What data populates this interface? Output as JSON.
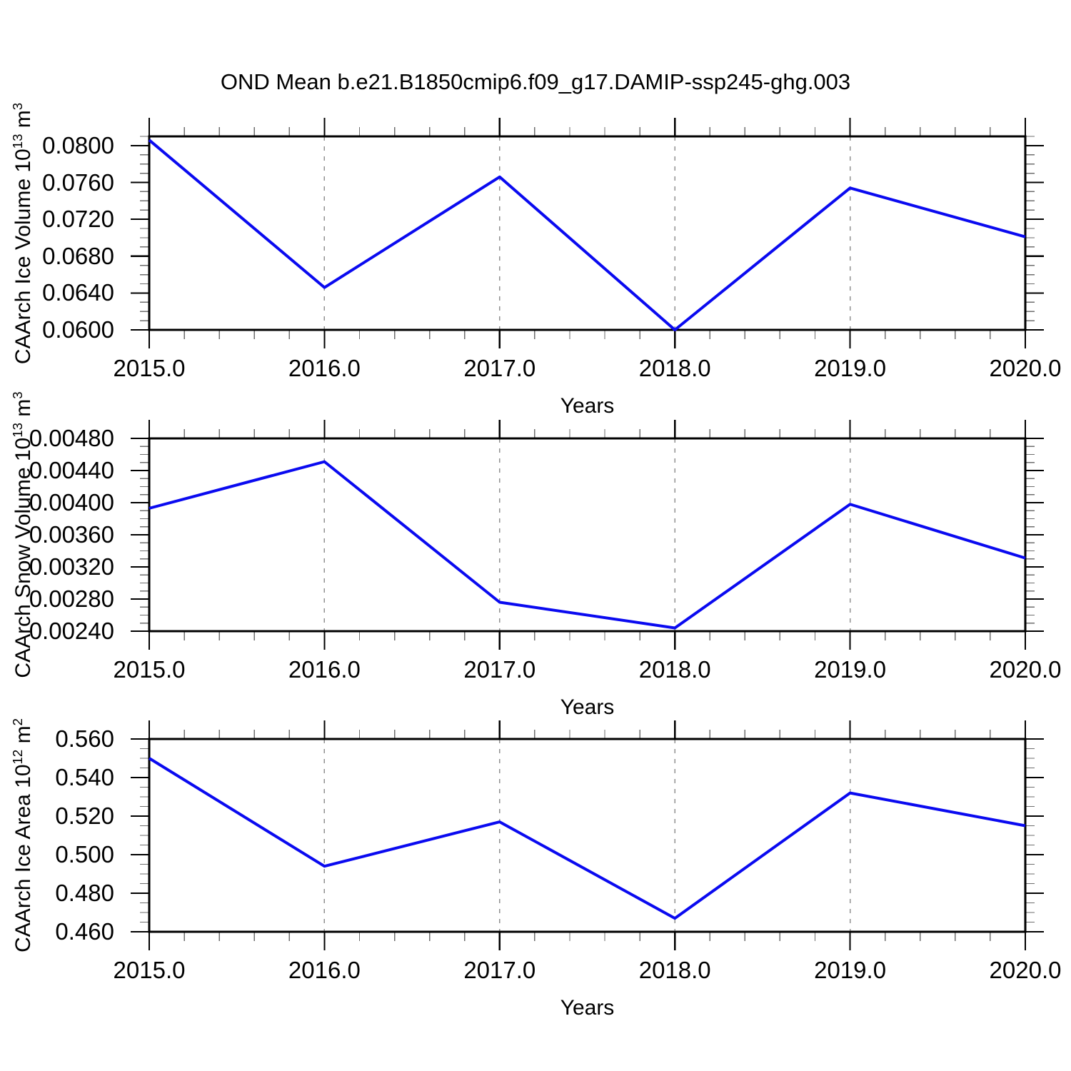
{
  "title": "OND Mean b.e21.B1850cmip6.f09_g17.DAMIP-ssp245-ghg.003",
  "colors": {
    "line": "#0a0af0",
    "frame": "#000000",
    "major_tick": "#000000",
    "minor_tick": "#6e6e6e",
    "grid": "#909090",
    "text": "#000000"
  },
  "x_axis": {
    "title": "Years",
    "range": [
      2015.0,
      2020.0
    ],
    "tick_values": [
      2015.0,
      2016.0,
      2017.0,
      2018.0,
      2019.0,
      2020.0
    ],
    "tick_labels": [
      "2015.0",
      "2016.0",
      "2017.0",
      "2018.0",
      "2019.0",
      "2020.0"
    ],
    "minor_step": 0.2,
    "gridlines_at": [
      2016.0,
      2017.0,
      2018.0,
      2019.0
    ],
    "grid_style": "dashed"
  },
  "chart_data": [
    {
      "type": "line",
      "name": "caarch-ice-volume",
      "ylabel": "CAArch Ice Volume 10^13 m^3",
      "ylabel_parts": [
        {
          "t": "CAArch Ice Volume 10"
        },
        {
          "t": "13",
          "sup": true
        },
        {
          "t": " m"
        },
        {
          "t": "3",
          "sup": true
        }
      ],
      "x": [
        2015.0,
        2016.0,
        2017.0,
        2018.0,
        2019.0,
        2020.0
      ],
      "values": [
        0.0806,
        0.0646,
        0.0766,
        0.06,
        0.0754,
        0.0701
      ],
      "ylim": [
        0.06,
        0.081
      ],
      "ytick_values": [
        0.06,
        0.064,
        0.068,
        0.072,
        0.076,
        0.08
      ],
      "ytick_labels": [
        "0.0600",
        "0.0640",
        "0.0680",
        "0.0720",
        "0.0760",
        "0.0800"
      ],
      "yminor_step": 0.001
    },
    {
      "type": "line",
      "name": "caarch-snow-volume",
      "ylabel": "CAArch Snow Volume 10^13 m^3",
      "ylabel_parts": [
        {
          "t": "CAArch Snow Volume 10"
        },
        {
          "t": "13",
          "sup": true
        },
        {
          "t": " m"
        },
        {
          "t": "3",
          "sup": true
        }
      ],
      "x": [
        2015.0,
        2016.0,
        2017.0,
        2018.0,
        2019.0,
        2020.0
      ],
      "values": [
        0.00393,
        0.00451,
        0.00276,
        0.00244,
        0.00398,
        0.00331
      ],
      "ylim": [
        0.0024,
        0.0048
      ],
      "ytick_values": [
        0.0024,
        0.0028,
        0.0032,
        0.0036,
        0.004,
        0.0044,
        0.0048
      ],
      "ytick_labels": [
        "0.00240",
        "0.00280",
        "0.00320",
        "0.00360",
        "0.00400",
        "0.00440",
        "0.00480"
      ],
      "yminor_step": 0.0001
    },
    {
      "type": "line",
      "name": "caarch-ice-area",
      "ylabel": "CAArch Ice Area 10^12 m^2",
      "ylabel_parts": [
        {
          "t": "CAArch Ice Area 10"
        },
        {
          "t": "12",
          "sup": true
        },
        {
          "t": " m"
        },
        {
          "t": "2",
          "sup": true
        }
      ],
      "x": [
        2015.0,
        2016.0,
        2017.0,
        2018.0,
        2019.0,
        2020.0
      ],
      "values": [
        0.55,
        0.494,
        0.517,
        0.467,
        0.532,
        0.515
      ],
      "ylim": [
        0.46,
        0.56
      ],
      "ytick_values": [
        0.46,
        0.48,
        0.5,
        0.52,
        0.54,
        0.56
      ],
      "ytick_labels": [
        "0.460",
        "0.480",
        "0.500",
        "0.520",
        "0.540",
        "0.560"
      ],
      "yminor_step": 0.005
    }
  ]
}
